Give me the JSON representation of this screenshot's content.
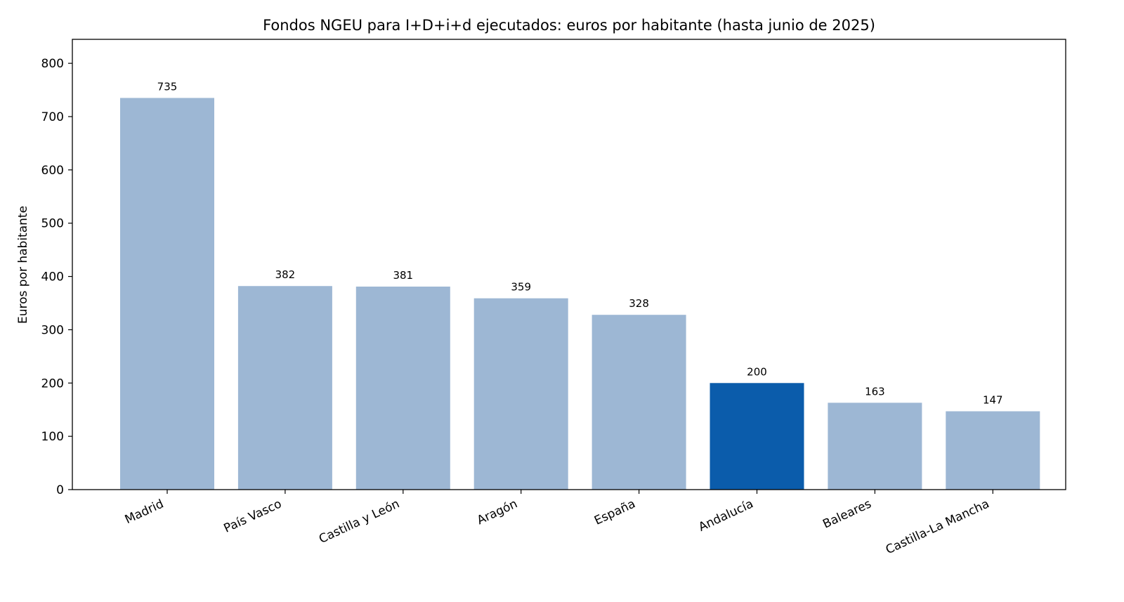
{
  "chart_data": {
    "type": "bar",
    "title": "Fondos NGEU para I+D+i+d ejecutados: euros por habitante (hasta junio de 2025)",
    "xlabel": "",
    "ylabel": "Euros por habitante",
    "categories": [
      "Madrid",
      "País Vasco",
      "Castilla y León",
      "Aragón",
      "España",
      "Andalucía",
      "Baleares",
      "Castilla-La Mancha"
    ],
    "values": [
      735,
      382,
      381,
      359,
      328,
      200,
      163,
      147
    ],
    "data_labels": [
      "735",
      "382",
      "381",
      "359",
      "328",
      "200",
      "163",
      "147"
    ],
    "highlight": "Andalucía",
    "ylim": [
      0,
      845
    ],
    "yticks": [
      0,
      100,
      200,
      300,
      400,
      500,
      600,
      700,
      800
    ],
    "grid": false,
    "colors": {
      "default": "#9db7d4",
      "highlight": "#0b5cab"
    }
  }
}
